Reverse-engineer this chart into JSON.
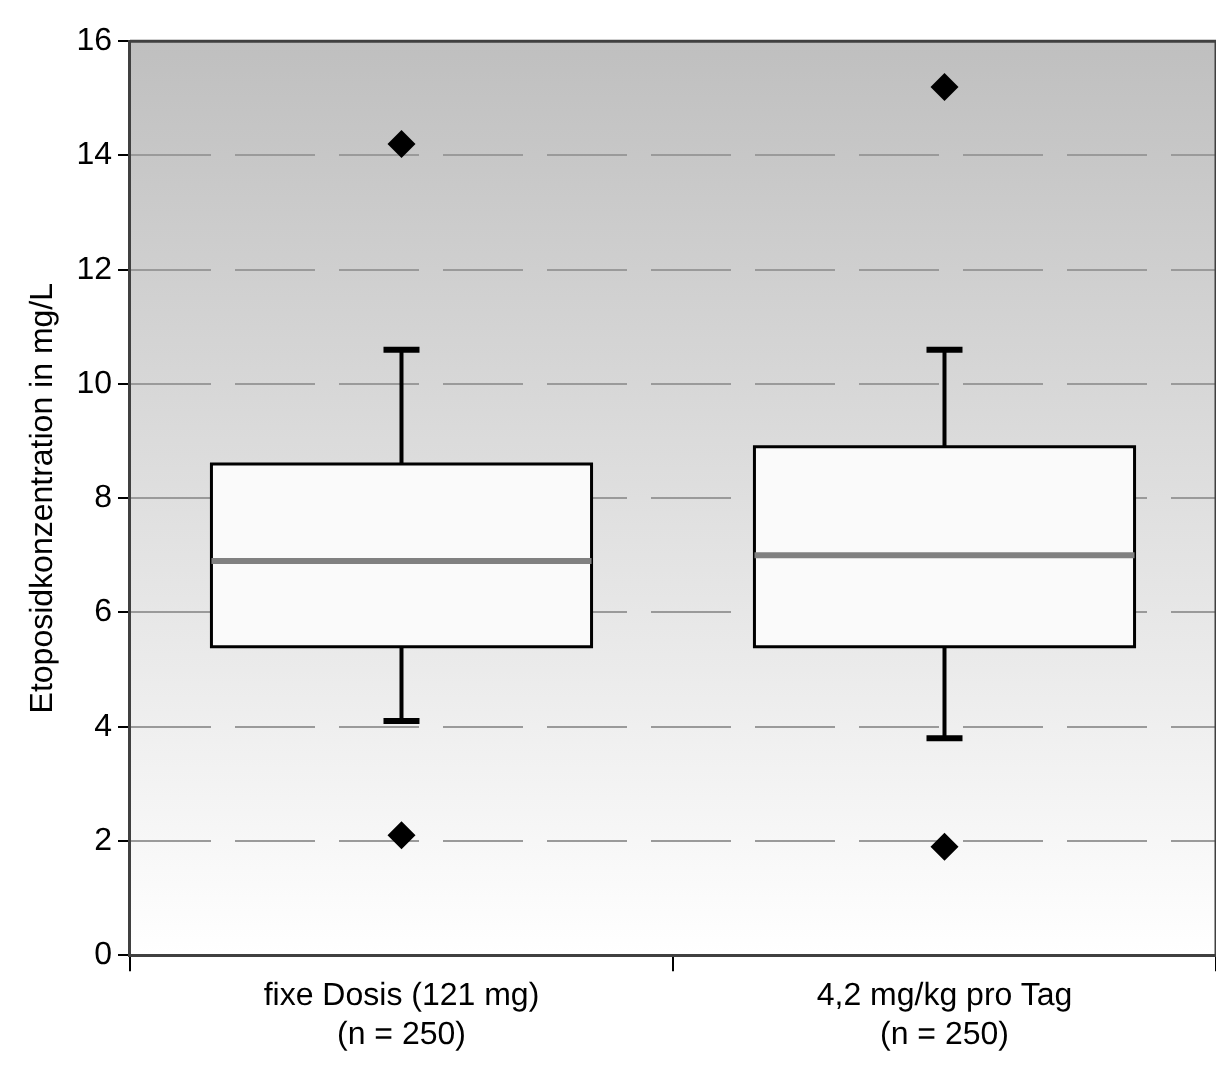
{
  "chart_data": {
    "type": "box",
    "ylabel": "Etoposidkonzentration in mg/L",
    "categories": [
      "fixe Dosis (121 mg)\n(n = 250)",
      "4,2 mg/kg pro Tag\n(n = 250)"
    ],
    "boxes": [
      {
        "low": 4.1,
        "q1": 5.4,
        "median": 6.9,
        "q3": 8.6,
        "high": 10.6,
        "outliers": [
          2.1,
          14.2
        ]
      },
      {
        "low": 3.8,
        "q1": 5.4,
        "median": 7.0,
        "q3": 8.9,
        "high": 10.6,
        "outliers": [
          1.9,
          15.2
        ]
      }
    ],
    "ylim": [
      0,
      16
    ],
    "yticks": [
      0,
      2,
      4,
      6,
      8,
      10,
      12,
      14,
      16
    ],
    "grid": "y",
    "legend": false,
    "marker": "diamond"
  }
}
